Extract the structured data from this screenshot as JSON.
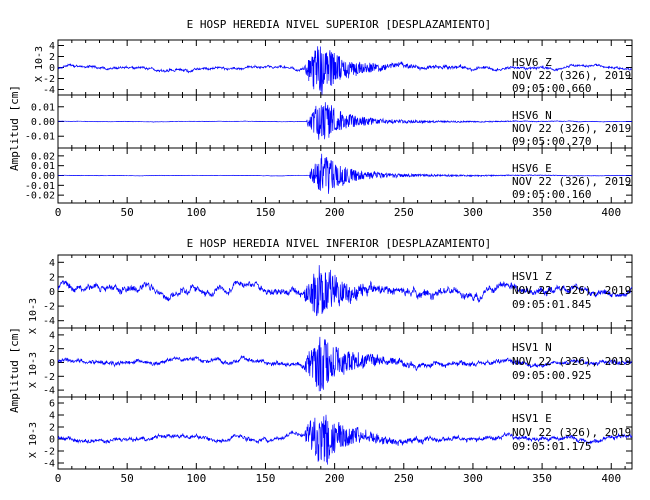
{
  "chart_data": [
    {
      "type": "line",
      "title": "E HOSP HEREDIA NIVEL SUPERIOR [DESPLAZAMIENTO]",
      "ylabel": "Amplitud [cm]",
      "x": {
        "range": [
          0,
          415
        ],
        "ticks": [
          0,
          50,
          100,
          150,
          200,
          250,
          300,
          350,
          400
        ]
      },
      "line_color": "#0000ff",
      "grid": false,
      "panels": [
        {
          "channel": "HSV6 Z",
          "date": "NOV 22 (326), 2019",
          "time": "09:05:00.660",
          "scale_label": "X 10-3",
          "yticks": [
            -4,
            -2,
            0,
            2,
            4
          ],
          "ylim": [
            -5,
            5
          ],
          "series": {
            "quiet_amplitude": 0.6,
            "peak_amplitude": 4.8,
            "onset": 178,
            "peak": 190,
            "pre_offset": -0.1
          }
        },
        {
          "channel": "HSV6 N",
          "date": "NOV 22 (326), 2019",
          "time": "09:05:00.270",
          "scale_label": "",
          "yticks": [
            -0.01,
            0.0,
            0.01
          ],
          "ylim": [
            -0.018,
            0.018
          ],
          "series": {
            "quiet_amplitude": 0.0003,
            "peak_amplitude": 0.014,
            "onset": 180,
            "peak": 191,
            "pre_offset": 0
          }
        },
        {
          "channel": "HSV6 E",
          "date": "NOV 22 (326), 2019",
          "time": "09:05:00.160",
          "scale_label": "",
          "yticks": [
            -0.02,
            -0.01,
            0.0,
            0.01,
            0.02
          ],
          "ylim": [
            -0.028,
            0.028
          ],
          "series": {
            "quiet_amplitude": 0.0004,
            "peak_amplitude": 0.022,
            "onset": 182,
            "peak": 191,
            "pre_offset": 0
          }
        }
      ]
    },
    {
      "type": "line",
      "title": "E HOSP HEREDIA NIVEL INFERIOR [DESPLAZAMIENTO]",
      "ylabel": "Amplitud [cm]",
      "x": {
        "range": [
          0,
          415
        ],
        "ticks": [
          0,
          50,
          100,
          150,
          200,
          250,
          300,
          350,
          400
        ]
      },
      "line_color": "#0000ff",
      "grid": false,
      "panels": [
        {
          "channel": "HSV1 Z",
          "date": "NOV 22 (326), 2019",
          "time": "09:05:01.845",
          "scale_label": "X 10-3",
          "yticks": [
            -4,
            -2,
            0,
            2,
            4
          ],
          "ylim": [
            -5,
            5
          ],
          "series": {
            "quiet_amplitude": 1.2,
            "peak_amplitude": 3.8,
            "onset": 178,
            "peak": 190,
            "pre_offset": 0.2
          }
        },
        {
          "channel": "HSV1 N",
          "date": "NOV 22 (326), 2019",
          "time": "09:05:00.925",
          "scale_label": "X 10-3",
          "yticks": [
            -4,
            -2,
            0,
            2,
            4
          ],
          "ylim": [
            -5,
            5
          ],
          "series": {
            "quiet_amplitude": 0.8,
            "peak_amplitude": 4.3,
            "onset": 178,
            "peak": 191,
            "pre_offset": 0
          }
        },
        {
          "channel": "HSV1 E",
          "date": "NOV 22 (326), 2019",
          "time": "09:05:01.175",
          "scale_label": "X 10-3",
          "yticks": [
            -4,
            -2,
            0,
            2,
            4,
            6
          ],
          "ylim": [
            -5,
            7
          ],
          "series": {
            "quiet_amplitude": 0.9,
            "peak_amplitude": 4.6,
            "onset": 178,
            "peak": 190,
            "pre_offset": 0
          }
        }
      ]
    }
  ]
}
